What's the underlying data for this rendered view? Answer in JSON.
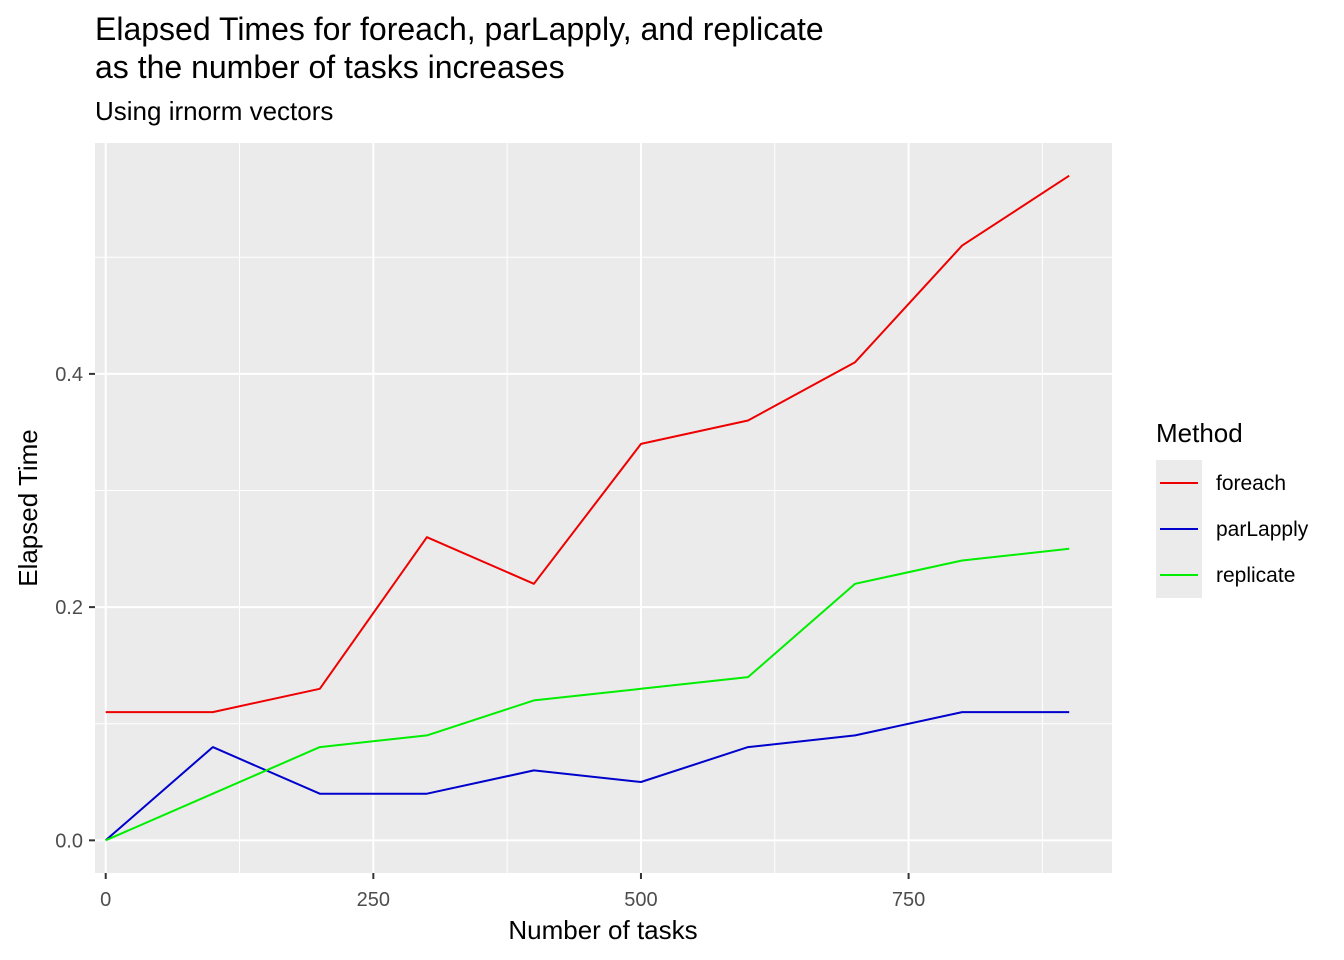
{
  "chart_data": {
    "type": "line",
    "title": [
      "Elapsed Times for foreach, parLapply, and replicate",
      "as the number of tasks increases"
    ],
    "subtitle": "Using irnorm vectors",
    "xlabel": "Number of tasks",
    "ylabel": "Elapsed Time",
    "xlim": [
      -10,
      940
    ],
    "ylim": [
      -0.028,
      0.598
    ],
    "xticks": [
      0,
      250,
      500,
      750
    ],
    "xtick_labels": [
      "0",
      "250",
      "500",
      "750"
    ],
    "yticks": [
      0.0,
      0.2,
      0.4
    ],
    "ytick_labels": [
      "0.0",
      "0.2",
      "0.4"
    ],
    "grid": true,
    "legend": {
      "title": "Method",
      "position": "right"
    },
    "x": [
      0,
      100,
      200,
      300,
      400,
      500,
      600,
      700,
      800,
      900
    ],
    "series": [
      {
        "name": "foreach",
        "color": "#ee0000",
        "values": [
          0.11,
          0.11,
          0.13,
          0.26,
          0.22,
          0.34,
          0.36,
          0.41,
          0.51,
          0.57
        ]
      },
      {
        "name": "parLapply",
        "color": "#0000cc",
        "values": [
          0.0,
          0.08,
          0.04,
          0.04,
          0.06,
          0.05,
          0.08,
          0.09,
          0.11,
          0.11
        ]
      },
      {
        "name": "replicate",
        "color": "#00ee00",
        "values": [
          0.0,
          0.04,
          0.08,
          0.09,
          0.12,
          0.13,
          0.14,
          0.22,
          0.24,
          0.25
        ]
      }
    ]
  }
}
